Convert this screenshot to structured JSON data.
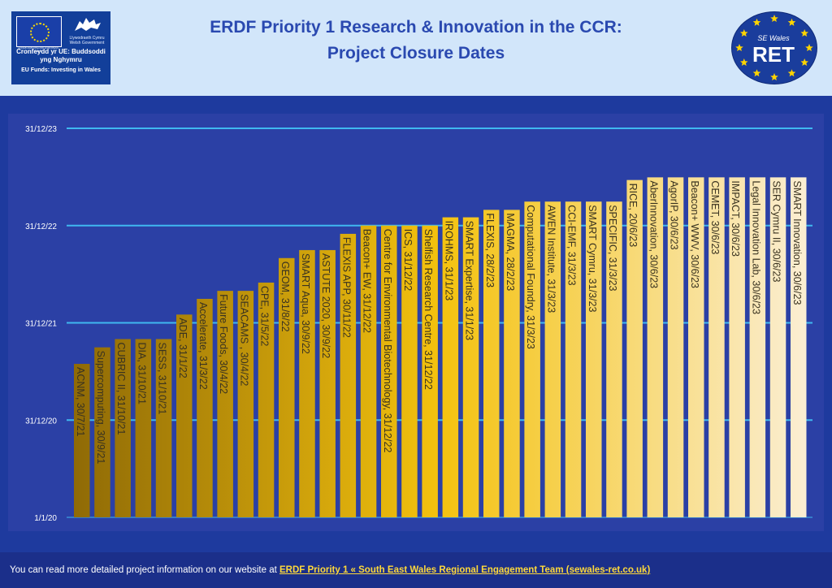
{
  "header": {
    "title_line1": "ERDF Priority 1 Research & Innovation in the CCR:",
    "title_line2": "Project Closure Dates",
    "eu_logo": {
      "flag_caption": "UNDEB EWROPEAIDD EUROPEAN UNION",
      "gov_caption": "Llywodraeth Cymru Welsh Government",
      "main_text": "Cronfeydd yr UE: Buddsoddi yng Nghymru",
      "sub_text": "EU Funds: Investing in Wales"
    },
    "ret_logo": {
      "small": "SE Wales",
      "big": "RET"
    }
  },
  "colors": {
    "header_bg": "#d2e6fa",
    "title": "#2a49b0",
    "page_bg": "#1e3a9e",
    "plot_bg": "#2b40a5",
    "gridline": "#3fb8f0",
    "bar_dark": "#8f6a06",
    "bar_mid": "#f4c20e",
    "bar_light": "#fbeed3",
    "footer_link": "#ffd93a"
  },
  "chart_data": {
    "type": "bar",
    "y_is_date": true,
    "ylim": [
      "2020-01-01",
      "2023-12-31"
    ],
    "ytick_labels": [
      "1/1/20",
      "31/12/20",
      "31/12/21",
      "31/12/22",
      "31/12/23"
    ],
    "ytick_values": [
      "2020-01-01",
      "2020-12-31",
      "2021-12-31",
      "2022-12-31",
      "2023-12-31"
    ],
    "grid": true,
    "bars": [
      {
        "label": "ACNM, 30/7/21",
        "date": "2021-07-30"
      },
      {
        "label": "Supercomputing, 30/9/21",
        "date": "2021-09-30"
      },
      {
        "label": "CUBRIC II, 31/10/21",
        "date": "2021-10-31"
      },
      {
        "label": "DIA, 31/10/21",
        "date": "2021-10-31"
      },
      {
        "label": "SESS, 31/10/21",
        "date": "2021-10-31"
      },
      {
        "label": "ADE, 31/1/22",
        "date": "2022-01-31"
      },
      {
        "label": "Accelerate, 31/3/22",
        "date": "2022-03-31"
      },
      {
        "label": "Future Foods, 30/4/22",
        "date": "2022-04-30"
      },
      {
        "label": "SEACAMS , 30/4/22",
        "date": "2022-04-30"
      },
      {
        "label": "CPE, 31/5/22",
        "date": "2022-05-31"
      },
      {
        "label": "GEOM, 31/8/22",
        "date": "2022-08-31"
      },
      {
        "label": "SMART Aqua, 30/9/22",
        "date": "2022-09-30"
      },
      {
        "label": "ASTUTE 2020, 30/9/22",
        "date": "2022-09-30"
      },
      {
        "label": "FLEXIS APP, 30/11/22",
        "date": "2022-11-30"
      },
      {
        "label": "Beacon+ EW, 31/12/22",
        "date": "2022-12-31"
      },
      {
        "label": "Centre for Environmental Biotechnology, 31/12/22",
        "date": "2022-12-31"
      },
      {
        "label": "ICS, 31/12/22",
        "date": "2022-12-31"
      },
      {
        "label": "Shelfish Research Centre, 31/12/22",
        "date": "2022-12-31"
      },
      {
        "label": "IROHMS, 31/1/23",
        "date": "2023-01-31"
      },
      {
        "label": "SMART Expertise, 31/1/23",
        "date": "2023-01-31"
      },
      {
        "label": "FLEXIS, 28/2/23",
        "date": "2023-02-28"
      },
      {
        "label": "MAGMA, 28/2/23",
        "date": "2023-02-28"
      },
      {
        "label": "Computational Foundry, 31/3/23",
        "date": "2023-03-31"
      },
      {
        "label": "AWEN Institute, 31/3/23",
        "date": "2023-03-31"
      },
      {
        "label": "CCI-EMF, 31/3/23",
        "date": "2023-03-31"
      },
      {
        "label": "SMART Cymru, 31/3/23",
        "date": "2023-03-31"
      },
      {
        "label": "SPECIFIC, 31/3/23",
        "date": "2023-03-31"
      },
      {
        "label": "RICE, 20/6/23",
        "date": "2023-06-20"
      },
      {
        "label": "AberInnovation, 30/6/23",
        "date": "2023-06-30"
      },
      {
        "label": "AgorIP, 30/6/23",
        "date": "2023-06-30"
      },
      {
        "label": "Beacon+ WWV, 30/6/23",
        "date": "2023-06-30"
      },
      {
        "label": "CEMET, 30/6/23",
        "date": "2023-06-30"
      },
      {
        "label": "IMPACT, 30/6/23",
        "date": "2023-06-30"
      },
      {
        "label": "Legal Innovation Lab, 30/6/23",
        "date": "2023-06-30"
      },
      {
        "label": "SER Cymru II, 30/6/23",
        "date": "2023-06-30"
      },
      {
        "label": "SMART Innovation, 30/6/23",
        "date": "2023-06-30"
      }
    ]
  },
  "footer": {
    "text": "You can read more detailed project information on our website at ",
    "link_text": "ERDF Priority 1 « South East Wales Regional Engagement Team (sewales-ret.co.uk)"
  }
}
